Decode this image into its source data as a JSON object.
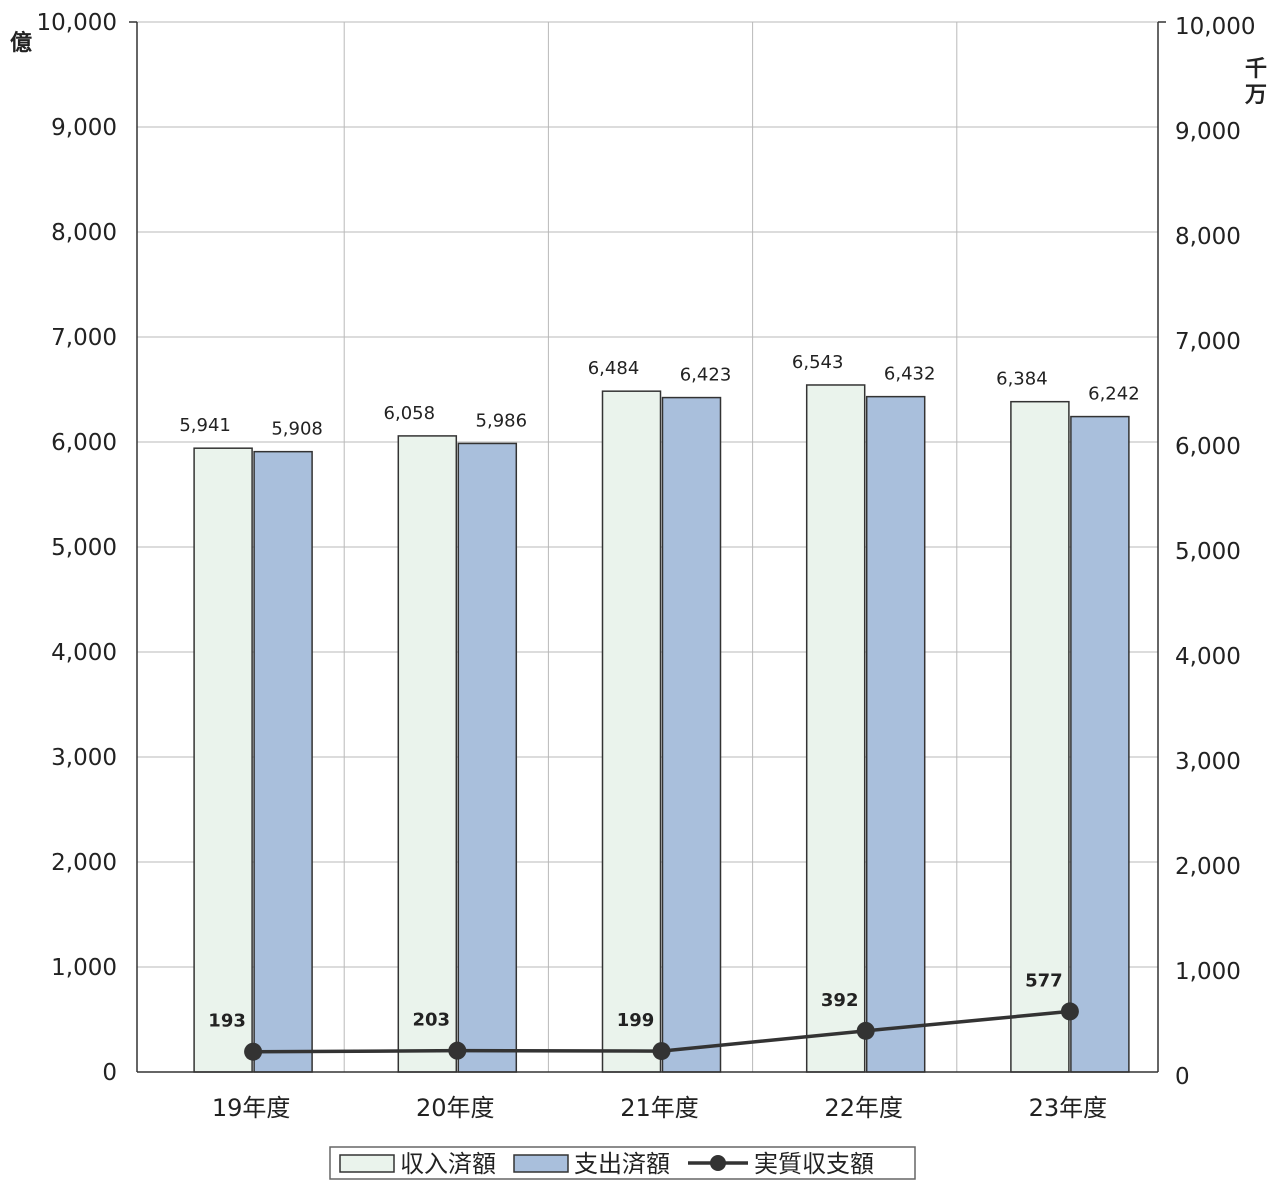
{
  "chart_data": {
    "type": "bar",
    "categories": [
      "19年度",
      "20年度",
      "21年度",
      "22年度",
      "23年度"
    ],
    "series": [
      {
        "name": "収入済額",
        "type": "bar",
        "axis": "left",
        "color": "#eaf3ec",
        "values": [
          5941,
          6058,
          6484,
          6543,
          6384
        ],
        "labels": [
          "5,941",
          "6,058",
          "6,484",
          "6,543",
          "6,384"
        ]
      },
      {
        "name": "支出済額",
        "type": "bar",
        "axis": "left",
        "color": "#a9bfdc",
        "values": [
          5908,
          5986,
          6423,
          6432,
          6242
        ],
        "labels": [
          "5,908",
          "5,986",
          "6,423",
          "6,432",
          "6,242"
        ]
      },
      {
        "name": "実質収支額",
        "type": "line",
        "axis": "right",
        "color": "#333333",
        "values": [
          193,
          203,
          199,
          392,
          577
        ],
        "labels": [
          "193",
          "203",
          "199",
          "392",
          "577"
        ]
      }
    ],
    "ylim": [
      0,
      10000
    ],
    "y2lim": [
      0,
      10000
    ],
    "yticks": [
      "0",
      "1,000",
      "2,000",
      "3,000",
      "4,000",
      "5,000",
      "6,000",
      "7,000",
      "8,000",
      "9,000",
      "10,000"
    ],
    "y2ticks": [
      "0",
      "1,000",
      "2,000",
      "3,000",
      "4,000",
      "5,000",
      "6,000",
      "7,000",
      "8,000",
      "9,000",
      "10,000"
    ],
    "ylabel": "億",
    "y2label": "千万",
    "grid": true,
    "legend_position": "bottom-center"
  }
}
